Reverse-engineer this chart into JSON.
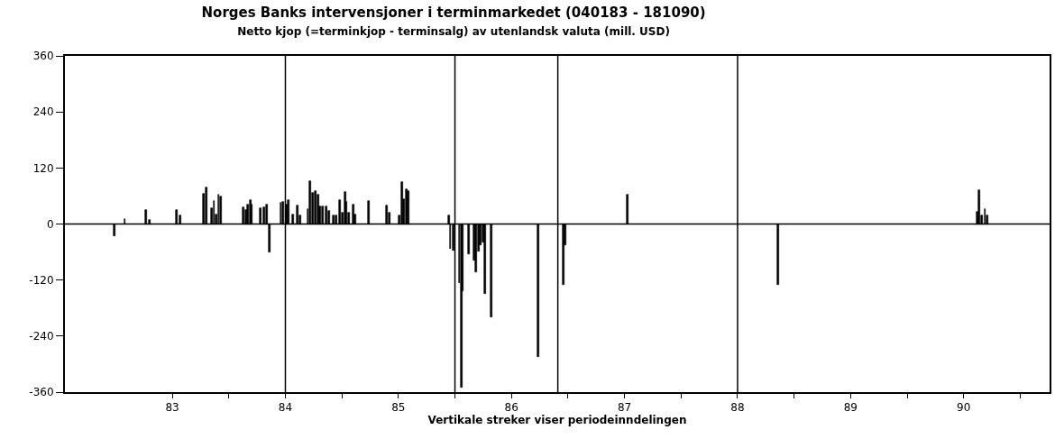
{
  "chart_data": {
    "type": "bar",
    "title": "Norges Banks intervensjoner i terminmarkedet (040183 - 181090)",
    "subtitle": "Netto kjop (=terminkjop - terminsalg) av utenlandsk valuta (mill. USD)",
    "xlabel": "Vertikale streker viser periodeinndelingen",
    "x": [
      82.49,
      82.58,
      82.77,
      82.8,
      83.04,
      83.07,
      83.28,
      83.3,
      83.35,
      83.37,
      83.39,
      83.41,
      83.43,
      83.63,
      83.65,
      83.67,
      83.69,
      83.7,
      83.78,
      83.81,
      83.84,
      83.86,
      83.96,
      83.98,
      84.015,
      84.03,
      84.07,
      84.11,
      84.13,
      84.2,
      84.22,
      84.24,
      84.27,
      84.29,
      84.31,
      84.33,
      84.36,
      84.39,
      84.43,
      84.45,
      84.48,
      84.51,
      84.53,
      84.54,
      84.56,
      84.6,
      84.62,
      84.74,
      84.9,
      84.92,
      85.01,
      85.03,
      85.05,
      85.07,
      85.09,
      85.45,
      85.46,
      85.49,
      85.54,
      85.56,
      85.57,
      85.62,
      85.67,
      85.69,
      85.71,
      85.73,
      85.75,
      85.77,
      85.82,
      86.24,
      86.46,
      86.48,
      87.03,
      88.36,
      90.12,
      90.14,
      90.16,
      90.19,
      90.21
    ],
    "series": [
      {
        "color": "#000000",
        "values": [
          -27,
          10,
          29,
          8,
          29,
          18,
          65,
          78,
          33,
          50,
          20,
          62,
          58,
          35,
          29,
          41,
          52,
          41,
          33,
          35,
          41,
          -61,
          45,
          47,
          41,
          52,
          21,
          39,
          19,
          31,
          91,
          67,
          70,
          63,
          38,
          38,
          38,
          28,
          18,
          19,
          51,
          25,
          69,
          47,
          25,
          41,
          21,
          49,
          39,
          25,
          19,
          89,
          54,
          75,
          70,
          19,
          -53,
          -56,
          -126,
          -350,
          -143,
          -65,
          -78,
          -104,
          -58,
          -45,
          -39,
          -149,
          -199,
          -285,
          -130,
          -45,
          62,
          -130,
          26,
          73,
          19,
          32,
          18
        ]
      }
    ],
    "xlim": [
      82.05,
      90.76
    ],
    "xticks": [
      83,
      {
        "value": 83.5,
        "label": null
      },
      84,
      {
        "value": 84.5,
        "label": null
      },
      85,
      {
        "value": 85.5,
        "label": null
      },
      86,
      {
        "value": 86.5,
        "label": null
      },
      87,
      {
        "value": 87.5,
        "label": null
      },
      88,
      {
        "value": 88.5,
        "label": null
      },
      89,
      {
        "value": 89.5,
        "label": null
      },
      90,
      {
        "value": 90.5,
        "label": null
      }
    ],
    "ylim": [
      -360,
      360
    ],
    "yticks": [
      -360,
      -240,
      -120,
      0,
      120,
      240,
      360
    ],
    "ref_lines": [
      {
        "axis": "x",
        "value": 84,
        "color": "#000000"
      },
      {
        "axis": "x",
        "value": 85.5,
        "color": "#000000"
      },
      {
        "axis": "x",
        "value": 86.41,
        "color": "#000000"
      },
      {
        "axis": "x",
        "value": 88,
        "color": "#000000"
      },
      {
        "axis": "y",
        "value": 0,
        "color": "#000000"
      }
    ]
  }
}
